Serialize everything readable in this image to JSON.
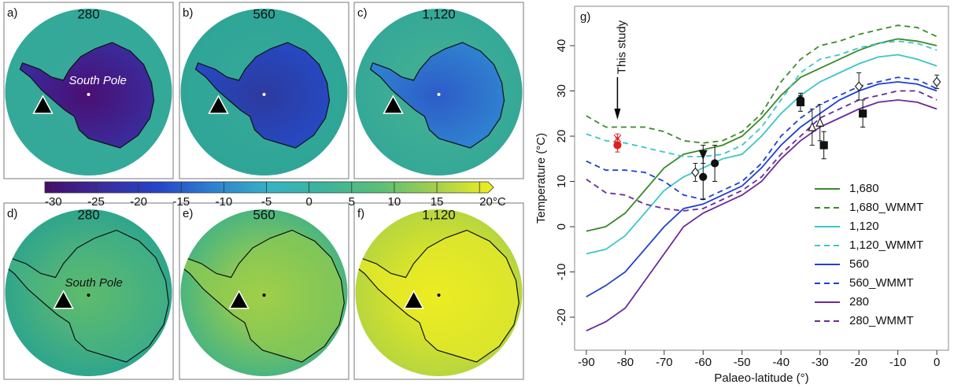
{
  "maps": [
    {
      "label": "a)",
      "title": "280",
      "annotation": "South Pole"
    },
    {
      "label": "b)",
      "title": "560"
    },
    {
      "label": "c)",
      "title": "1,120"
    },
    {
      "label": "d)",
      "title": "280",
      "annotation": "South Pole"
    },
    {
      "label": "e)",
      "title": "560"
    },
    {
      "label": "f)",
      "title": "1,120"
    }
  ],
  "colorbar": {
    "colors": [
      "#470b6a",
      "#3a2c9c",
      "#2544c8",
      "#2f80d0",
      "#35b3c4",
      "#3db39a",
      "#5bbf76",
      "#a6d04a",
      "#f1f01e"
    ],
    "lim": [
      -31,
      21
    ],
    "ticks": [
      -30,
      -25,
      -20,
      -15,
      -10,
      -5,
      0,
      5,
      10,
      15,
      {
        "value": 20,
        "label": "20°C"
      }
    ]
  },
  "chart_data": {
    "type": "line",
    "panel_label": "g)",
    "x_label": "Palaeo-latitude (°)",
    "y_label": "Temperature (°C)",
    "annotation": "This study",
    "annotation_x": -82,
    "xlim": [
      -93,
      3
    ],
    "ylim": [
      -27.3,
      48.7
    ],
    "xticks": [
      -90,
      -80,
      -70,
      -60,
      -50,
      -40,
      -30,
      -20,
      -10,
      0
    ],
    "yticks": [
      -20,
      -10,
      0,
      10,
      20,
      30,
      40
    ],
    "x": [
      -90,
      -85,
      -80,
      -75,
      -70,
      -65,
      -60,
      -55,
      -50,
      -45,
      -40,
      -35,
      -30,
      -25,
      -20,
      -15,
      -10,
      -5,
      0
    ],
    "legend": "lower right",
    "series": [
      {
        "name": "1,680",
        "color": "#3a8a2a",
        "style": "solid",
        "values": [
          -1,
          0,
          3,
          8,
          13,
          16,
          17,
          18,
          20,
          24,
          29,
          33,
          35,
          37,
          39,
          40.5,
          41.5,
          41,
          40
        ]
      },
      {
        "name": "1,680_WMMT",
        "color": "#3a8a2a",
        "style": "dashed",
        "values": [
          24.5,
          22,
          22,
          22,
          21,
          19,
          18.5,
          19,
          21,
          25,
          32,
          37,
          40,
          41,
          42.5,
          43.5,
          44.5,
          44,
          42
        ]
      },
      {
        "name": "1,120",
        "color": "#3cc6c6",
        "style": "solid",
        "values": [
          -6,
          -5,
          -2,
          3,
          8,
          11,
          13,
          15,
          16,
          20,
          25,
          29,
          32,
          34,
          36,
          37.5,
          38,
          37,
          35.5
        ]
      },
      {
        "name": "1,120_WMMT",
        "color": "#3cc6c6",
        "style": "dashed",
        "values": [
          20.5,
          19,
          18.5,
          17.5,
          16.5,
          15.5,
          15.5,
          16,
          18,
          22,
          28,
          34,
          37,
          38,
          39.5,
          40.5,
          41,
          40.5,
          39
        ]
      },
      {
        "name": "560",
        "color": "#2040d0",
        "style": "solid",
        "values": [
          -15.5,
          -13,
          -10,
          -5,
          0,
          4,
          5,
          7,
          9,
          13,
          18,
          22,
          25,
          28,
          30,
          31.5,
          32,
          31.5,
          30
        ]
      },
      {
        "name": "560_WMMT",
        "color": "#2040d0",
        "style": "dashed",
        "values": [
          14.5,
          12.5,
          12.5,
          12,
          10,
          7,
          6,
          8,
          10,
          14,
          20,
          24,
          27,
          29,
          31,
          32,
          33,
          32.5,
          30.5
        ]
      },
      {
        "name": "280",
        "color": "#6a2a9a",
        "style": "solid",
        "values": [
          -23,
          -21,
          -18,
          -12,
          -6,
          0,
          3,
          5,
          7,
          10,
          15,
          19,
          22,
          24,
          26,
          27.5,
          28,
          27.5,
          26
        ]
      },
      {
        "name": "280_WMMT",
        "color": "#6a2a9a",
        "style": "dashed",
        "values": [
          10.5,
          7.5,
          7,
          5,
          4,
          3.5,
          4,
          6,
          8,
          11,
          16,
          20,
          24,
          26,
          28,
          29,
          30,
          30,
          28
        ]
      }
    ],
    "points": [
      {
        "x": -82,
        "y": 18,
        "error": 1.5,
        "marker": "circle",
        "filled": true,
        "color": "#e02020"
      },
      {
        "x": -82,
        "y": 19.5,
        "error": 1,
        "marker": "x",
        "filled": true,
        "color": "#e02020"
      },
      {
        "x": -62,
        "y": 12,
        "error": 2,
        "marker": "diamond",
        "filled": false,
        "color": "#222222"
      },
      {
        "x": -60,
        "y": 16,
        "error": 2,
        "marker": "triangle-down",
        "filled": true,
        "color": "#111111"
      },
      {
        "x": -60,
        "y": 11,
        "error": 5,
        "marker": "circle",
        "filled": true,
        "color": "#111111"
      },
      {
        "x": -57,
        "y": 14,
        "error": 4,
        "marker": "circle",
        "filled": true,
        "color": "#111111"
      },
      {
        "x": -35,
        "y": 27.5,
        "error": 2,
        "marker": "square",
        "filled": true,
        "color": "#111111"
      },
      {
        "x": -35,
        "y": 28,
        "error": 1,
        "marker": "circle",
        "filled": true,
        "color": "#111111"
      },
      {
        "x": -32,
        "y": 22,
        "error": 4,
        "marker": "triangle",
        "filled": false,
        "color": "#222222"
      },
      {
        "x": -30,
        "y": 23,
        "error": 4,
        "marker": "triangle",
        "filled": false,
        "color": "#222222"
      },
      {
        "x": -29,
        "y": 18,
        "error": 3,
        "marker": "square",
        "filled": true,
        "color": "#111111"
      },
      {
        "x": -19,
        "y": 25,
        "error": 3,
        "marker": "square",
        "filled": true,
        "color": "#111111"
      },
      {
        "x": -20,
        "y": 31,
        "error": 3,
        "marker": "diamond",
        "filled": false,
        "color": "#222222"
      },
      {
        "x": 0,
        "y": 32,
        "error": 1.5,
        "marker": "diamond",
        "filled": false,
        "color": "#222222"
      }
    ]
  }
}
